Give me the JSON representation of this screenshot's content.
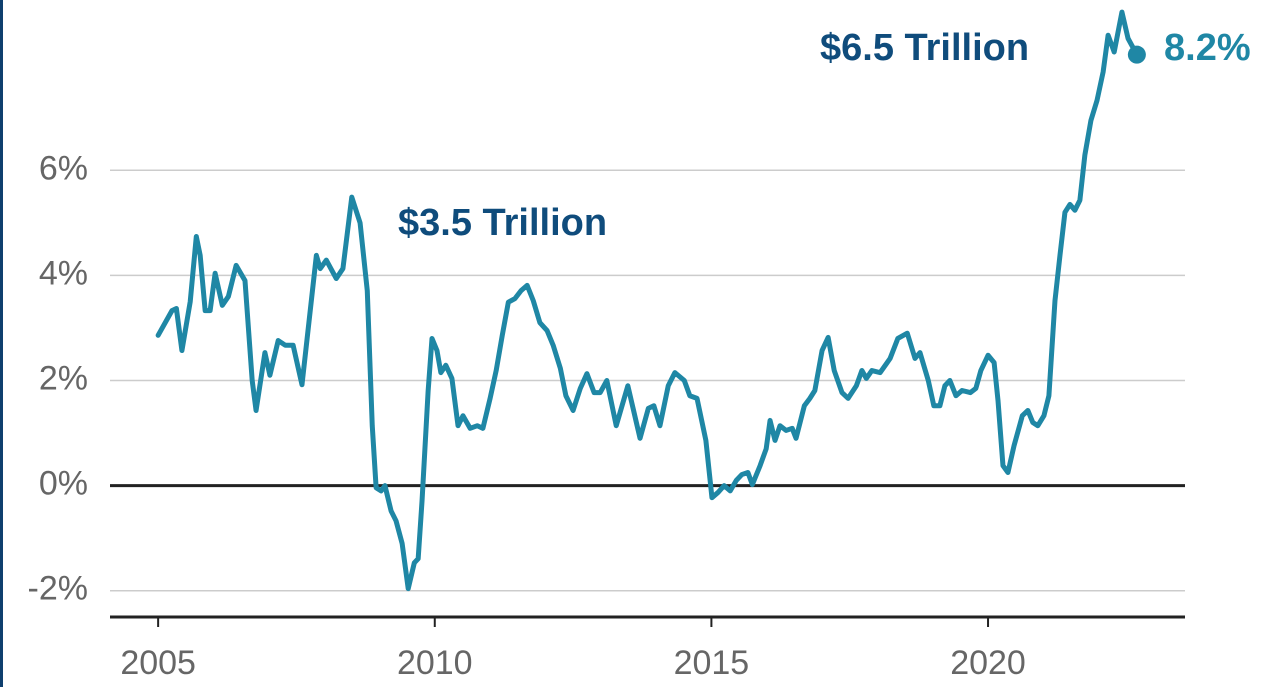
{
  "chart_data": {
    "type": "line",
    "x": [
      2005.0,
      2005.25,
      2005.33,
      2005.43,
      2005.58,
      2005.69,
      2005.76,
      2005.85,
      2005.94,
      2006.03,
      2006.16,
      2006.27,
      2006.41,
      2006.57,
      2006.7,
      2006.77,
      2006.93,
      2007.02,
      2007.17,
      2007.3,
      2007.44,
      2007.6,
      2007.86,
      2007.93,
      2008.04,
      2008.22,
      2008.34,
      2008.5,
      2008.65,
      2008.78,
      2008.87,
      2008.94,
      2009.03,
      2009.1,
      2009.21,
      2009.3,
      2009.41,
      2009.52,
      2009.63,
      2009.7,
      2009.77,
      2009.88,
      2009.95,
      2010.04,
      2010.11,
      2010.2,
      2010.31,
      2010.42,
      2010.51,
      2010.64,
      2010.77,
      2010.87,
      2011.0,
      2011.11,
      2011.22,
      2011.33,
      2011.45,
      2011.56,
      2011.67,
      2011.78,
      2011.9,
      2012.03,
      2012.14,
      2012.27,
      2012.37,
      2012.5,
      2012.63,
      2012.75,
      2012.88,
      2012.99,
      2013.11,
      2013.28,
      2013.49,
      2013.71,
      2013.86,
      2013.96,
      2014.07,
      2014.22,
      2014.34,
      2014.51,
      2014.61,
      2014.74,
      2014.9,
      2015.01,
      2015.12,
      2015.23,
      2015.34,
      2015.45,
      2015.55,
      2015.66,
      2015.74,
      2015.88,
      2015.99,
      2016.06,
      2016.15,
      2016.24,
      2016.35,
      2016.46,
      2016.53,
      2016.68,
      2016.78,
      2016.87,
      2017.0,
      2017.11,
      2017.22,
      2017.36,
      2017.47,
      2017.62,
      2017.72,
      2017.8,
      2017.9,
      2018.05,
      2018.23,
      2018.37,
      2018.54,
      2018.68,
      2018.77,
      2018.92,
      2019.02,
      2019.13,
      2019.22,
      2019.31,
      2019.42,
      2019.53,
      2019.68,
      2019.78,
      2019.87,
      2020.0,
      2020.11,
      2020.18,
      2020.27,
      2020.36,
      2020.47,
      2020.62,
      2020.72,
      2020.81,
      2020.9,
      2021.01,
      2021.1,
      2021.21,
      2021.3,
      2021.39,
      2021.48,
      2021.57,
      2021.66,
      2021.75,
      2021.86,
      2021.97,
      2022.08,
      2022.17,
      2022.28,
      2022.42,
      2022.53,
      2022.69
    ],
    "series": [
      {
        "color": "#1f87a5",
        "values": [
          2.86,
          3.33,
          3.37,
          2.57,
          3.5,
          4.74,
          4.38,
          3.33,
          3.33,
          4.04,
          3.43,
          3.6,
          4.19,
          3.9,
          2.0,
          1.43,
          2.53,
          2.1,
          2.76,
          2.67,
          2.67,
          1.92,
          4.38,
          4.13,
          4.29,
          3.94,
          4.13,
          5.49,
          5.0,
          3.71,
          1.14,
          -0.04,
          -0.1,
          0.0,
          -0.48,
          -0.67,
          -1.1,
          -1.96,
          -1.47,
          -1.39,
          -0.29,
          1.8,
          2.8,
          2.57,
          2.15,
          2.29,
          2.04,
          1.14,
          1.33,
          1.09,
          1.14,
          1.09,
          1.66,
          2.19,
          2.86,
          3.49,
          3.56,
          3.71,
          3.81,
          3.52,
          3.1,
          2.95,
          2.67,
          2.23,
          1.71,
          1.43,
          1.85,
          2.13,
          1.77,
          1.77,
          2.0,
          1.14,
          1.9,
          0.9,
          1.47,
          1.52,
          1.14,
          1.9,
          2.15,
          2.0,
          1.71,
          1.66,
          0.86,
          -0.23,
          -0.13,
          0.0,
          -0.1,
          0.1,
          0.21,
          0.25,
          0.02,
          0.38,
          0.7,
          1.24,
          0.86,
          1.14,
          1.05,
          1.09,
          0.9,
          1.52,
          1.66,
          1.81,
          2.57,
          2.82,
          2.19,
          1.77,
          1.66,
          1.9,
          2.19,
          2.04,
          2.19,
          2.15,
          2.42,
          2.8,
          2.9,
          2.42,
          2.53,
          2.0,
          1.52,
          1.52,
          1.9,
          2.0,
          1.71,
          1.81,
          1.77,
          1.85,
          2.19,
          2.48,
          2.34,
          1.62,
          0.38,
          0.25,
          0.76,
          1.33,
          1.43,
          1.2,
          1.14,
          1.33,
          1.71,
          3.52,
          4.38,
          5.2,
          5.35,
          5.24,
          5.43,
          6.29,
          6.95,
          7.33,
          7.87,
          8.57,
          8.25,
          9.01,
          8.51,
          8.2
        ]
      }
    ],
    "xlim": [
      2004.13,
      2023.56
    ],
    "ylim": [
      -2.5,
      9.24
    ],
    "xticks": [
      2005,
      2010,
      2015,
      2020
    ],
    "yticks": [
      {
        "value": -2,
        "label": "-2%"
      },
      {
        "value": 0,
        "label": "0%"
      },
      {
        "value": 2,
        "label": "2%"
      },
      {
        "value": 4,
        "label": "4%"
      },
      {
        "value": 6,
        "label": "6%"
      }
    ],
    "grid": true,
    "annotations": [
      "$3.5 Trillion",
      "$6.5 Trillion",
      "8.2%"
    ]
  }
}
